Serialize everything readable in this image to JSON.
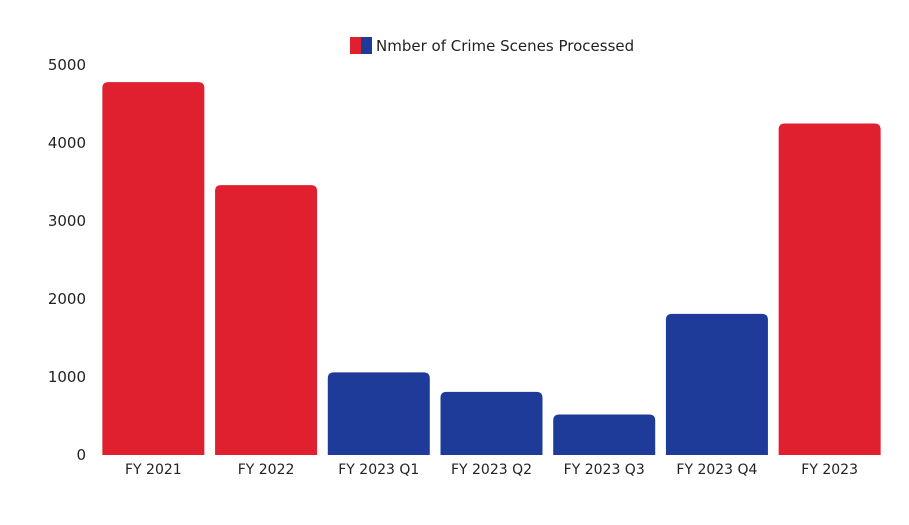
{
  "chart_data": {
    "type": "bar",
    "categories": [
      "FY 2021",
      "FY 2022",
      "FY 2023 Q1",
      "FY 2023 Q2",
      "FY 2023 Q3",
      "FY 2023 Q4",
      "FY 2023"
    ],
    "series": [
      {
        "name": "Nmber of Crime Scenes Processed",
        "values": [
          4780,
          3460,
          1060,
          810,
          520,
          1810,
          4250
        ],
        "bar_colors": [
          "#e01f2f",
          "#e01f2f",
          "#1f3b99",
          "#1f3b99",
          "#1f3b99",
          "#1f3b99",
          "#e01f2f"
        ]
      }
    ],
    "legend": {
      "label": "Nmber of Crime Scenes Processed",
      "position": "top-center",
      "swatch_colors": [
        "#e01f2f",
        "#1f3b99"
      ]
    },
    "yticks": [
      "0",
      "1000",
      "2000",
      "3000",
      "4000",
      "5000"
    ],
    "ylim": [
      0,
      5000
    ],
    "grid": false,
    "xlabel": "",
    "ylabel": "",
    "title": ""
  }
}
